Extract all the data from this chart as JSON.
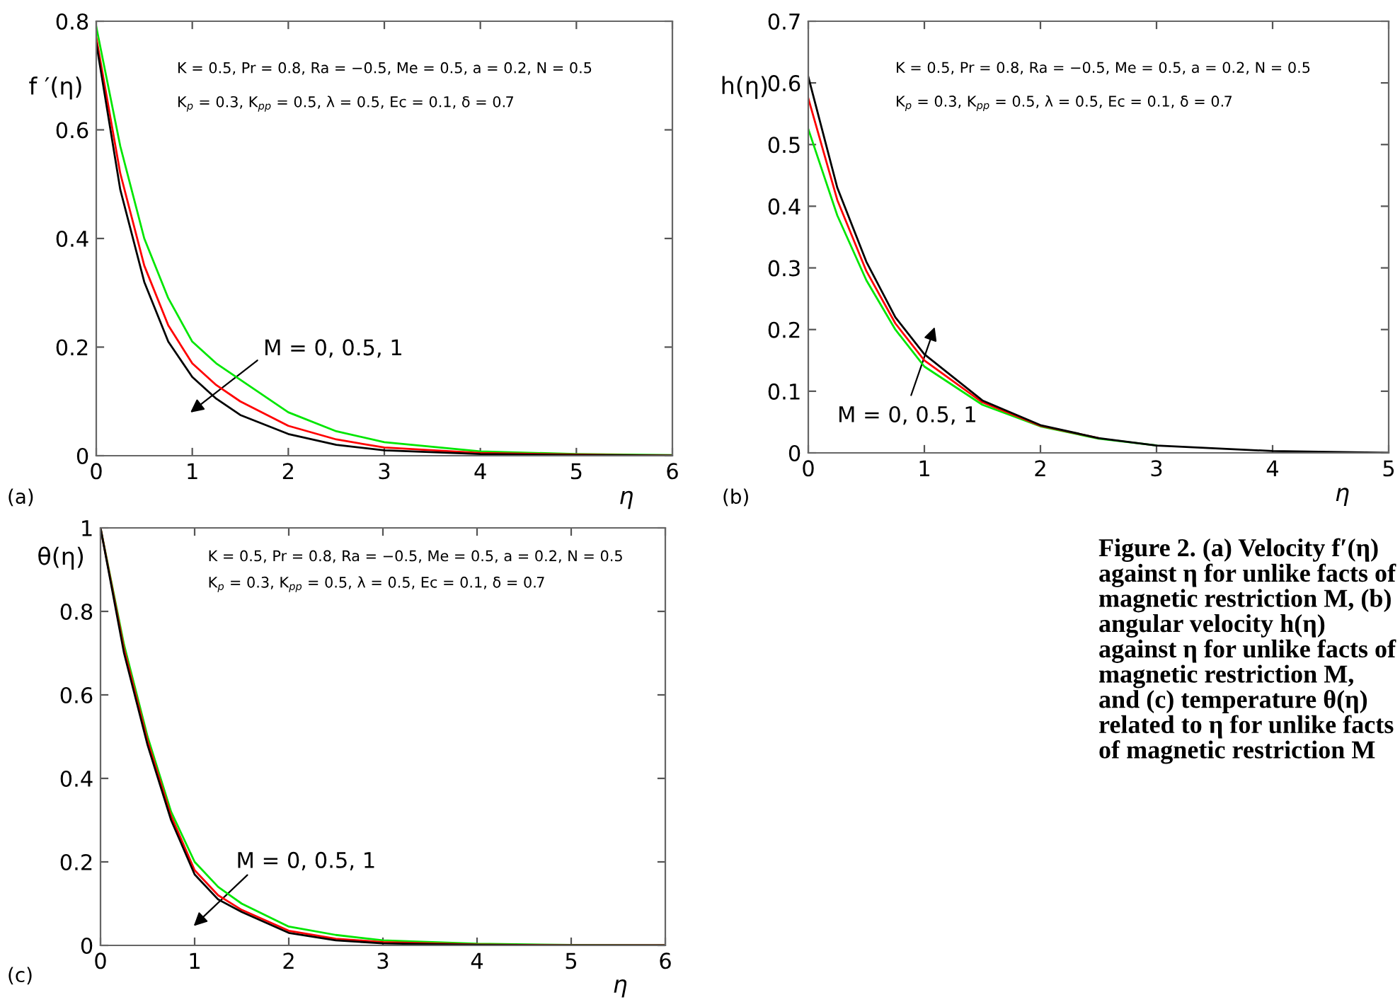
{
  "chart_data": [
    {
      "type": "line",
      "ylabel": "f ′(η)",
      "xlabel": "η",
      "xlim": [
        0,
        6
      ],
      "ylim": [
        0,
        0.8
      ],
      "xticks": [
        0,
        1,
        2,
        3,
        4,
        5,
        6
      ],
      "yticks": [
        0,
        0.2,
        0.4,
        0.6,
        0.8
      ],
      "grid": false,
      "marker": "none",
      "line_style": "solid",
      "annotations": [
        "(a)",
        "K = 0.5, Pr = 0.8, Ra = −0.5, Me = 0.5, a = 0.2, N = 0.5",
        "K$_{p}$ = 0.3, K$_{pp}$ = 0.5, λ = 0.5, Ec = 0.1, δ = 0.7",
        "M = 0, 0.5, 1"
      ],
      "x": [
        0,
        0.25,
        0.5,
        0.75,
        1,
        1.25,
        1.5,
        2,
        2.5,
        3,
        4,
        5,
        6
      ],
      "series": [
        {
          "color": "#00e600",
          "values": [
            0.79,
            0.57,
            0.4,
            0.29,
            0.21,
            0.17,
            0.14,
            0.08,
            0.045,
            0.025,
            0.008,
            0.003,
            0.001
          ]
        },
        {
          "color": "#ff0000",
          "values": [
            0.77,
            0.52,
            0.35,
            0.24,
            0.17,
            0.13,
            0.1,
            0.055,
            0.03,
            0.015,
            0.005,
            0.002,
            0
          ]
        },
        {
          "color": "#000000",
          "values": [
            0.76,
            0.49,
            0.32,
            0.21,
            0.145,
            0.105,
            0.075,
            0.04,
            0.02,
            0.01,
            0.003,
            0.001,
            0
          ]
        }
      ]
    },
    {
      "type": "line",
      "ylabel": "h(η)",
      "xlabel": "η",
      "xlim": [
        0,
        5
      ],
      "ylim": [
        0,
        0.7
      ],
      "xticks": [
        0,
        1,
        2,
        3,
        4,
        5
      ],
      "yticks": [
        0,
        0.1,
        0.2,
        0.3,
        0.4,
        0.5,
        0.6,
        0.7
      ],
      "grid": false,
      "marker": "none",
      "line_style": "solid",
      "annotations": [
        "(b)",
        "K = 0.5, Pr = 0.8, Ra = −0.5, Me = 0.5, a = 0.2, N = 0.5",
        "K$_{p}$ = 0.3, K$_{pp}$ = 0.5, λ = 0.5, Ec = 0.1, δ = 0.7",
        "M = 0, 0.5, 1"
      ],
      "x": [
        0,
        0.25,
        0.5,
        0.75,
        1,
        1.5,
        2,
        2.5,
        3,
        4,
        5
      ],
      "series": [
        {
          "color": "#00e600",
          "values": [
            0.525,
            0.385,
            0.28,
            0.2,
            0.14,
            0.078,
            0.043,
            0.023,
            0.012,
            null,
            null
          ]
        },
        {
          "color": "#ff0000",
          "values": [
            0.575,
            0.41,
            0.295,
            0.21,
            0.15,
            0.082,
            0.044,
            0.024,
            null,
            null,
            null
          ]
        },
        {
          "color": "#000000",
          "values": [
            0.61,
            0.43,
            0.31,
            0.22,
            0.16,
            0.085,
            0.045,
            0.024,
            0.012,
            0.003,
            0
          ]
        }
      ]
    },
    {
      "type": "line",
      "ylabel": "θ(η)",
      "xlabel": "η",
      "xlim": [
        0,
        6
      ],
      "ylim": [
        0,
        1
      ],
      "xticks": [
        0,
        1,
        2,
        3,
        4,
        5,
        6
      ],
      "yticks": [
        0,
        0.2,
        0.4,
        0.6,
        0.8,
        1
      ],
      "grid": false,
      "marker": "none",
      "line_style": "solid",
      "annotations": [
        "(c)",
        "K = 0.5, Pr = 0.8, Ra = −0.5, Me = 0.5, a = 0.2, N = 0.5",
        "K$_{p}$ = 0.3, K$_{pp}$ = 0.5, λ = 0.5, Ec = 0.1, δ = 0.7",
        "M = 0, 0.5, 1",
        "Figure 2. (a) Velocity f′(η) against η for unlike facts of magnetic restriction M, (b) angular velocity h(η) against η for unlike facts of magnetic restriction M, and (c) temperature θ(η) related to η for unlike facts of magnetic restriction M"
      ],
      "x": [
        0,
        0.25,
        0.5,
        0.75,
        1,
        1.25,
        1.5,
        2,
        2.5,
        3,
        4,
        5,
        6
      ],
      "series": [
        {
          "color": "#00e600",
          "values": [
            1,
            0.72,
            0.5,
            0.32,
            0.2,
            0.14,
            0.1,
            0.045,
            0.025,
            0.012,
            0.004,
            0.001,
            0
          ]
        },
        {
          "color": "#ff0000",
          "values": [
            1,
            0.71,
            0.49,
            0.31,
            0.18,
            0.12,
            0.085,
            0.035,
            0.016,
            0.008,
            0.002,
            0,
            0
          ]
        },
        {
          "color": "#000000",
          "values": [
            1,
            0.7,
            0.48,
            0.3,
            0.17,
            0.11,
            0.08,
            0.03,
            0.012,
            0.005,
            0.001,
            0,
            0
          ]
        }
      ]
    }
  ]
}
